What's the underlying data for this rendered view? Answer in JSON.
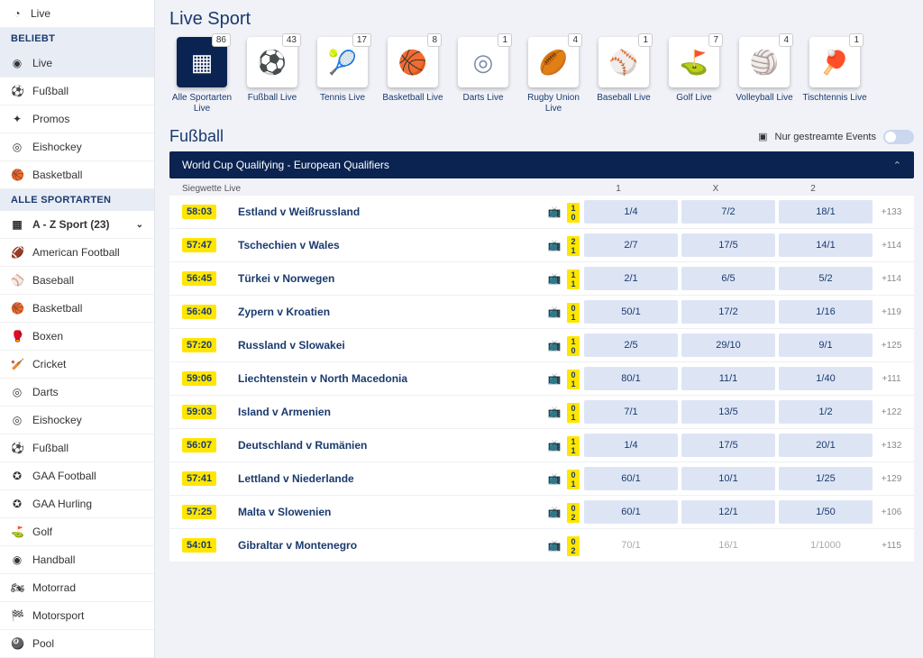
{
  "sidebar": {
    "top": {
      "label": "Live"
    },
    "sections": [
      {
        "header": "BELIEBT",
        "items": [
          {
            "label": "Live",
            "icon": "◉",
            "active": true
          },
          {
            "label": "Fußball",
            "icon": "⚽"
          },
          {
            "label": "Promos",
            "icon": "✦"
          },
          {
            "label": "Eishockey",
            "icon": "◎"
          },
          {
            "label": "Basketball",
            "icon": "🏀"
          }
        ]
      },
      {
        "header": "ALLE SPORTARTEN",
        "items": [
          {
            "label": "A - Z Sport (23)",
            "icon": "▦",
            "bold": true,
            "chevron": true
          },
          {
            "label": "American Football",
            "icon": "🏈"
          },
          {
            "label": "Baseball",
            "icon": "⚾"
          },
          {
            "label": "Basketball",
            "icon": "🏀"
          },
          {
            "label": "Boxen",
            "icon": "🥊"
          },
          {
            "label": "Cricket",
            "icon": "🏏"
          },
          {
            "label": "Darts",
            "icon": "◎"
          },
          {
            "label": "Eishockey",
            "icon": "◎"
          },
          {
            "label": "Fußball",
            "icon": "⚽"
          },
          {
            "label": "GAA Football",
            "icon": "✪"
          },
          {
            "label": "GAA Hurling",
            "icon": "✪"
          },
          {
            "label": "Golf",
            "icon": "⛳"
          },
          {
            "label": "Handball",
            "icon": "◉"
          },
          {
            "label": "Motorrad",
            "icon": "🏍"
          },
          {
            "label": "Motorsport",
            "icon": "🏁"
          },
          {
            "label": "Pool",
            "icon": "🎱"
          }
        ]
      }
    ]
  },
  "page_title": "Live Sport",
  "tiles": [
    {
      "label": "Alle Sportarten Live",
      "count": 86,
      "icon": "▦",
      "active": true
    },
    {
      "label": "Fußball Live",
      "count": 43,
      "icon": "⚽"
    },
    {
      "label": "Tennis Live",
      "count": 17,
      "icon": "🎾"
    },
    {
      "label": "Basketball Live",
      "count": 8,
      "icon": "🏀"
    },
    {
      "label": "Darts Live",
      "count": 1,
      "icon": "◎"
    },
    {
      "label": "Rugby Union Live",
      "count": 4,
      "icon": "🏉"
    },
    {
      "label": "Baseball Live",
      "count": 1,
      "icon": "⚾"
    },
    {
      "label": "Golf Live",
      "count": 7,
      "icon": "⛳"
    },
    {
      "label": "Volleyball Live",
      "count": 4,
      "icon": "🏐"
    },
    {
      "label": "Tischtennis Live",
      "count": 1,
      "icon": "🏓"
    }
  ],
  "section_title": "Fußball",
  "streamed_label": "Nur gestreamte Events",
  "competition": "World Cup Qualifying - European Qualifiers",
  "sub_hdr": {
    "label": "Siegwette Live",
    "c1": "1",
    "cx": "X",
    "c2": "2"
  },
  "matches": [
    {
      "time": "58:03",
      "name": "Estland v Weißrussland",
      "s1": "1",
      "s2": "0",
      "o1": "1/4",
      "ox": "7/2",
      "o2": "18/1",
      "more": "+133"
    },
    {
      "time": "57:47",
      "name": "Tschechien v Wales",
      "s1": "2",
      "s2": "1",
      "o1": "2/7",
      "ox": "17/5",
      "o2": "14/1",
      "more": "+114"
    },
    {
      "time": "56:45",
      "name": "Türkei v Norwegen",
      "s1": "1",
      "s2": "1",
      "o1": "2/1",
      "ox": "6/5",
      "o2": "5/2",
      "more": "+114"
    },
    {
      "time": "56:40",
      "name": "Zypern v Kroatien",
      "s1": "0",
      "s2": "1",
      "o1": "50/1",
      "ox": "17/2",
      "o2": "1/16",
      "more": "+119"
    },
    {
      "time": "57:20",
      "name": "Russland v Slowakei",
      "s1": "1",
      "s2": "0",
      "o1": "2/5",
      "ox": "29/10",
      "o2": "9/1",
      "more": "+125"
    },
    {
      "time": "59:06",
      "name": "Liechtenstein v North Macedonia",
      "s1": "0",
      "s2": "1",
      "o1": "80/1",
      "ox": "11/1",
      "o2": "1/40",
      "more": "+111"
    },
    {
      "time": "59:03",
      "name": "Island v Armenien",
      "s1": "0",
      "s2": "1",
      "o1": "7/1",
      "ox": "13/5",
      "o2": "1/2",
      "more": "+122"
    },
    {
      "time": "56:07",
      "name": "Deutschland v Rumänien",
      "s1": "1",
      "s2": "1",
      "o1": "1/4",
      "ox": "17/5",
      "o2": "20/1",
      "more": "+132"
    },
    {
      "time": "57:41",
      "name": "Lettland v Niederlande",
      "s1": "0",
      "s2": "1",
      "o1": "60/1",
      "ox": "10/1",
      "o2": "1/25",
      "more": "+129"
    },
    {
      "time": "57:25",
      "name": "Malta v Slowenien",
      "s1": "0",
      "s2": "2",
      "o1": "60/1",
      "ox": "12/1",
      "o2": "1/50",
      "more": "+106"
    },
    {
      "time": "54:01",
      "name": "Gibraltar v Montenegro",
      "s1": "0",
      "s2": "2",
      "o1": "70/1",
      "ox": "16/1",
      "o2": "1/1000",
      "more": "+115",
      "disabled": true
    }
  ]
}
